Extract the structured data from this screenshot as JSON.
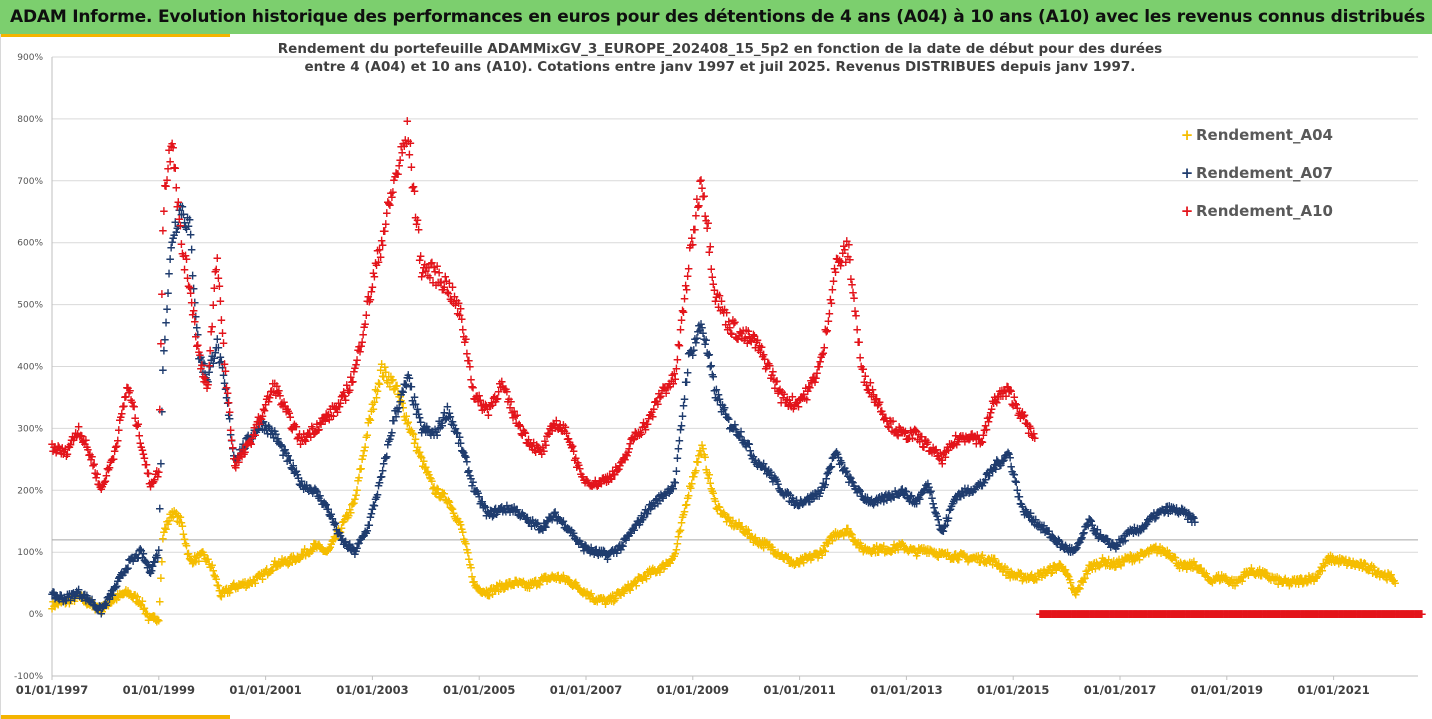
{
  "header": {
    "title": "ADAM Informe. Evolution historique des performances en euros pour des détentions de 4 ans (A04) à 10 ans (A10) avec les revenus connus distribués"
  },
  "colors": {
    "header_bg": "#7ccf6e",
    "accent": "#f4b400",
    "a04": "#f5bd00",
    "a07": "#1f3c6e",
    "a10": "#e3141b"
  },
  "chart_data": {
    "type": "scatter",
    "title": "Rendement du portefeuille ADAMMixGV_3_EUROPE_202408_15_5p2  en fonction de la date de début pour des durées",
    "subtitle": "entre 4 (A04) et 10 ans (A10). Cotations  entre janv 1997 et juil 2025. Revenus DISTRIBUES depuis janv 1997.",
    "xlabel": "",
    "ylabel": "",
    "x_range": [
      "1997-01-01",
      "2022-09-30"
    ],
    "ylim": [
      -100,
      900
    ],
    "y_ticks": [
      "-100%",
      "0%",
      "100%",
      "200%",
      "300%",
      "400%",
      "500%",
      "600%",
      "700%",
      "800%",
      "900%"
    ],
    "x_ticks": [
      "01/01/1997",
      "01/01/1999",
      "01/01/2001",
      "01/01/2003",
      "01/01/2005",
      "01/01/2007",
      "01/01/2009",
      "01/01/2011",
      "01/01/2013",
      "01/01/2015",
      "01/01/2017",
      "01/01/2019",
      "01/01/2021"
    ],
    "grid": "horizontal",
    "legend_position": "top-right",
    "reference_line_y": 120,
    "series": [
      {
        "name": "Rendement_A04",
        "points": [
          [
            "1997-01",
            15
          ],
          [
            "1997-04",
            20
          ],
          [
            "1997-07",
            28
          ],
          [
            "1997-10",
            15
          ],
          [
            "1997-12",
            8
          ],
          [
            "1998-03",
            25
          ],
          [
            "1998-06",
            35
          ],
          [
            "1998-09",
            20
          ],
          [
            "1998-11",
            -10
          ],
          [
            "1999-01",
            -5
          ],
          [
            "1999-02",
            130
          ],
          [
            "1999-04",
            165
          ],
          [
            "1999-06",
            150
          ],
          [
            "1999-08",
            85
          ],
          [
            "1999-11",
            95
          ],
          [
            "2000-01",
            75
          ],
          [
            "2000-03",
            30
          ],
          [
            "2000-06",
            45
          ],
          [
            "2000-09",
            50
          ],
          [
            "2000-12",
            60
          ],
          [
            "2001-03",
            80
          ],
          [
            "2001-06",
            85
          ],
          [
            "2001-09",
            95
          ],
          [
            "2001-12",
            110
          ],
          [
            "2002-03",
            100
          ],
          [
            "2002-06",
            140
          ],
          [
            "2002-09",
            180
          ],
          [
            "2002-12",
            300
          ],
          [
            "2003-03",
            395
          ],
          [
            "2003-06",
            370
          ],
          [
            "2003-09",
            310
          ],
          [
            "2003-12",
            250
          ],
          [
            "2004-03",
            200
          ],
          [
            "2004-06",
            185
          ],
          [
            "2004-09",
            140
          ],
          [
            "2004-12",
            45
          ],
          [
            "2005-03",
            35
          ],
          [
            "2005-06",
            45
          ],
          [
            "2005-09",
            50
          ],
          [
            "2005-12",
            45
          ],
          [
            "2006-03",
            55
          ],
          [
            "2006-06",
            60
          ],
          [
            "2006-09",
            55
          ],
          [
            "2006-12",
            40
          ],
          [
            "2007-03",
            25
          ],
          [
            "2007-06",
            20
          ],
          [
            "2007-09",
            35
          ],
          [
            "2007-12",
            50
          ],
          [
            "2008-03",
            65
          ],
          [
            "2008-06",
            75
          ],
          [
            "2008-09",
            95
          ],
          [
            "2008-12",
            195
          ],
          [
            "2009-03",
            270
          ],
          [
            "2009-06",
            180
          ],
          [
            "2009-09",
            150
          ],
          [
            "2009-12",
            140
          ],
          [
            "2010-03",
            120
          ],
          [
            "2010-06",
            110
          ],
          [
            "2010-09",
            95
          ],
          [
            "2010-12",
            80
          ],
          [
            "2011-03",
            90
          ],
          [
            "2011-06",
            100
          ],
          [
            "2011-09",
            130
          ],
          [
            "2011-12",
            135
          ],
          [
            "2012-03",
            105
          ],
          [
            "2012-06",
            105
          ],
          [
            "2012-09",
            105
          ],
          [
            "2012-12",
            110
          ],
          [
            "2013-03",
            100
          ],
          [
            "2013-06",
            105
          ],
          [
            "2013-09",
            95
          ],
          [
            "2013-12",
            95
          ],
          [
            "2014-03",
            90
          ],
          [
            "2014-06",
            90
          ],
          [
            "2014-09",
            85
          ],
          [
            "2014-12",
            65
          ],
          [
            "2015-03",
            60
          ],
          [
            "2015-06",
            60
          ],
          [
            "2015-09",
            70
          ],
          [
            "2015-12",
            80
          ],
          [
            "2016-03",
            30
          ],
          [
            "2016-06",
            75
          ],
          [
            "2016-09",
            85
          ],
          [
            "2016-12",
            80
          ],
          [
            "2017-03",
            90
          ],
          [
            "2017-06",
            95
          ],
          [
            "2017-09",
            105
          ],
          [
            "2017-12",
            100
          ],
          [
            "2018-03",
            75
          ],
          [
            "2018-06",
            80
          ],
          [
            "2018-09",
            55
          ],
          [
            "2018-12",
            60
          ],
          [
            "2019-03",
            50
          ],
          [
            "2019-06",
            70
          ],
          [
            "2019-09",
            65
          ],
          [
            "2019-12",
            55
          ],
          [
            "2020-03",
            50
          ],
          [
            "2020-06",
            55
          ],
          [
            "2020-09",
            60
          ],
          [
            "2020-12",
            90
          ],
          [
            "2021-03",
            85
          ],
          [
            "2021-06",
            80
          ],
          [
            "2021-09",
            75
          ],
          [
            "2021-12",
            65
          ],
          [
            "2022-03",
            55
          ]
        ]
      },
      {
        "name": "Rendement_A07",
        "points": [
          [
            "1997-01",
            30
          ],
          [
            "1997-04",
            25
          ],
          [
            "1997-07",
            35
          ],
          [
            "1997-10",
            20
          ],
          [
            "1997-12",
            5
          ],
          [
            "1998-03",
            40
          ],
          [
            "1998-06",
            80
          ],
          [
            "1998-09",
            100
          ],
          [
            "1998-11",
            70
          ],
          [
            "1999-01",
            100
          ],
          [
            "1999-02",
            420
          ],
          [
            "1999-04",
            610
          ],
          [
            "1999-06",
            660
          ],
          [
            "1999-08",
            620
          ],
          [
            "1999-10",
            420
          ],
          [
            "1999-12",
            380
          ],
          [
            "2000-02",
            440
          ],
          [
            "2000-04",
            360
          ],
          [
            "2000-06",
            250
          ],
          [
            "2000-09",
            280
          ],
          [
            "2000-12",
            310
          ],
          [
            "2001-03",
            290
          ],
          [
            "2001-06",
            250
          ],
          [
            "2001-09",
            210
          ],
          [
            "2001-12",
            200
          ],
          [
            "2002-03",
            170
          ],
          [
            "2002-06",
            120
          ],
          [
            "2002-09",
            100
          ],
          [
            "2002-12",
            140
          ],
          [
            "2003-03",
            220
          ],
          [
            "2003-06",
            320
          ],
          [
            "2003-09",
            380
          ],
          [
            "2003-12",
            300
          ],
          [
            "2004-03",
            290
          ],
          [
            "2004-06",
            330
          ],
          [
            "2004-09",
            270
          ],
          [
            "2004-12",
            200
          ],
          [
            "2005-03",
            160
          ],
          [
            "2005-06",
            170
          ],
          [
            "2005-09",
            170
          ],
          [
            "2005-12",
            150
          ],
          [
            "2006-03",
            140
          ],
          [
            "2006-06",
            160
          ],
          [
            "2006-09",
            140
          ],
          [
            "2006-12",
            110
          ],
          [
            "2007-03",
            100
          ],
          [
            "2007-06",
            95
          ],
          [
            "2007-09",
            110
          ],
          [
            "2007-12",
            140
          ],
          [
            "2008-03",
            170
          ],
          [
            "2008-06",
            190
          ],
          [
            "2008-09",
            210
          ],
          [
            "2008-12",
            410
          ],
          [
            "2009-03",
            470
          ],
          [
            "2009-06",
            360
          ],
          [
            "2009-09",
            310
          ],
          [
            "2009-12",
            290
          ],
          [
            "2010-03",
            250
          ],
          [
            "2010-06",
            230
          ],
          [
            "2010-09",
            200
          ],
          [
            "2010-12",
            180
          ],
          [
            "2011-03",
            185
          ],
          [
            "2011-06",
            200
          ],
          [
            "2011-09",
            260
          ],
          [
            "2011-12",
            220
          ],
          [
            "2012-03",
            190
          ],
          [
            "2012-06",
            180
          ],
          [
            "2012-09",
            190
          ],
          [
            "2012-12",
            200
          ],
          [
            "2013-03",
            180
          ],
          [
            "2013-06",
            210
          ],
          [
            "2013-09",
            130
          ],
          [
            "2013-12",
            190
          ],
          [
            "2014-03",
            200
          ],
          [
            "2014-06",
            210
          ],
          [
            "2014-09",
            240
          ],
          [
            "2014-12",
            260
          ],
          [
            "2015-03",
            170
          ],
          [
            "2015-06",
            150
          ],
          [
            "2015-09",
            130
          ],
          [
            "2015-12",
            110
          ],
          [
            "2016-03",
            100
          ],
          [
            "2016-06",
            150
          ],
          [
            "2016-09",
            120
          ],
          [
            "2016-12",
            110
          ],
          [
            "2017-03",
            130
          ],
          [
            "2017-06",
            140
          ],
          [
            "2017-09",
            160
          ],
          [
            "2017-12",
            170
          ],
          [
            "2018-03",
            165
          ],
          [
            "2018-06",
            150
          ]
        ]
      },
      {
        "name": "Rendement_A10",
        "points": [
          [
            "1997-01",
            270
          ],
          [
            "1997-04",
            260
          ],
          [
            "1997-07",
            300
          ],
          [
            "1997-10",
            250
          ],
          [
            "1997-12",
            200
          ],
          [
            "1998-03",
            260
          ],
          [
            "1998-06",
            370
          ],
          [
            "1998-09",
            280
          ],
          [
            "1998-11",
            210
          ],
          [
            "1999-01",
            230
          ],
          [
            "1999-02",
            660
          ],
          [
            "1999-04",
            780
          ],
          [
            "1999-06",
            600
          ],
          [
            "1999-08",
            530
          ],
          [
            "1999-10",
            420
          ],
          [
            "1999-12",
            360
          ],
          [
            "2000-02",
            580
          ],
          [
            "2000-04",
            390
          ],
          [
            "2000-06",
            240
          ],
          [
            "2000-09",
            270
          ],
          [
            "2000-12",
            320
          ],
          [
            "2001-03",
            370
          ],
          [
            "2001-06",
            320
          ],
          [
            "2001-09",
            280
          ],
          [
            "2001-12",
            300
          ],
          [
            "2002-03",
            320
          ],
          [
            "2002-06",
            340
          ],
          [
            "2002-09",
            390
          ],
          [
            "2002-12",
            500
          ],
          [
            "2003-03",
            600
          ],
          [
            "2003-06",
            700
          ],
          [
            "2003-09",
            780
          ],
          [
            "2003-12",
            560
          ],
          [
            "2004-03",
            550
          ],
          [
            "2004-06",
            530
          ],
          [
            "2004-09",
            480
          ],
          [
            "2004-12",
            350
          ],
          [
            "2005-03",
            330
          ],
          [
            "2005-06",
            370
          ],
          [
            "2005-09",
            320
          ],
          [
            "2005-12",
            280
          ],
          [
            "2006-03",
            260
          ],
          [
            "2006-06",
            310
          ],
          [
            "2006-09",
            290
          ],
          [
            "2006-12",
            220
          ],
          [
            "2007-03",
            210
          ],
          [
            "2007-06",
            220
          ],
          [
            "2007-09",
            240
          ],
          [
            "2007-12",
            290
          ],
          [
            "2008-03",
            310
          ],
          [
            "2008-06",
            360
          ],
          [
            "2008-09",
            380
          ],
          [
            "2008-12",
            560
          ],
          [
            "2009-03",
            710
          ],
          [
            "2009-06",
            520
          ],
          [
            "2009-09",
            470
          ],
          [
            "2009-12",
            450
          ],
          [
            "2010-03",
            440
          ],
          [
            "2010-06",
            400
          ],
          [
            "2010-09",
            350
          ],
          [
            "2010-12",
            340
          ],
          [
            "2011-03",
            360
          ],
          [
            "2011-06",
            410
          ],
          [
            "2011-09",
            560
          ],
          [
            "2011-12",
            590
          ],
          [
            "2012-03",
            390
          ],
          [
            "2012-06",
            350
          ],
          [
            "2012-09",
            310
          ],
          [
            "2012-12",
            290
          ],
          [
            "2013-03",
            290
          ],
          [
            "2013-06",
            270
          ],
          [
            "2013-09",
            250
          ],
          [
            "2013-12",
            280
          ],
          [
            "2014-03",
            290
          ],
          [
            "2014-06",
            280
          ],
          [
            "2014-09",
            350
          ],
          [
            "2014-12",
            360
          ],
          [
            "2015-03",
            320
          ],
          [
            "2015-06",
            280
          ]
        ]
      },
      {
        "name": "",
        "points": [
          [
            "2015-07",
            0
          ],
          [
            "2022-09",
            0
          ]
        ]
      }
    ]
  }
}
